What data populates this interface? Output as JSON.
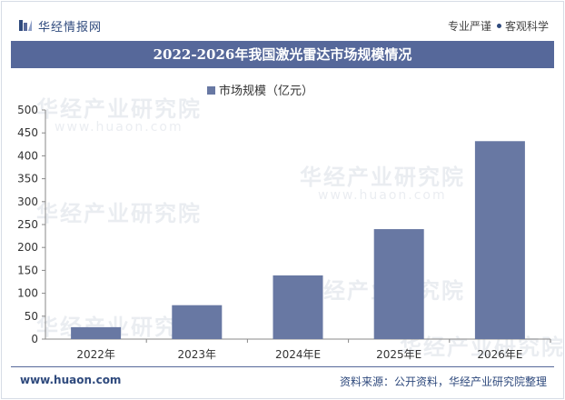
{
  "header": {
    "brand": "华经情报网",
    "slogan_left": "专业严谨",
    "slogan_right": "客观科学"
  },
  "watermark": {
    "text": "华经产业研究院",
    "url": "www.huaon.com"
  },
  "footer": {
    "url": "www.huaon.com",
    "source": "资料来源：公开资料，华经产业研究院整理"
  },
  "colors": {
    "accent": "#56689a",
    "bar": "#6878a3",
    "brand": "#2f4a7d"
  },
  "chart_data": {
    "type": "bar",
    "title": "2022-2026年我国激光雷达市场规模情况",
    "categories": [
      "2022年",
      "2023年",
      "2024年E",
      "2025年E",
      "2026年E"
    ],
    "series": [
      {
        "name": "市场规模（亿元）",
        "values": [
          26,
          74,
          139,
          240,
          432
        ]
      }
    ],
    "ylim": [
      0,
      500
    ],
    "yticks": [
      0,
      50,
      100,
      150,
      200,
      250,
      300,
      350,
      400,
      450,
      500
    ],
    "legend_position": "top-center",
    "grid": false
  }
}
